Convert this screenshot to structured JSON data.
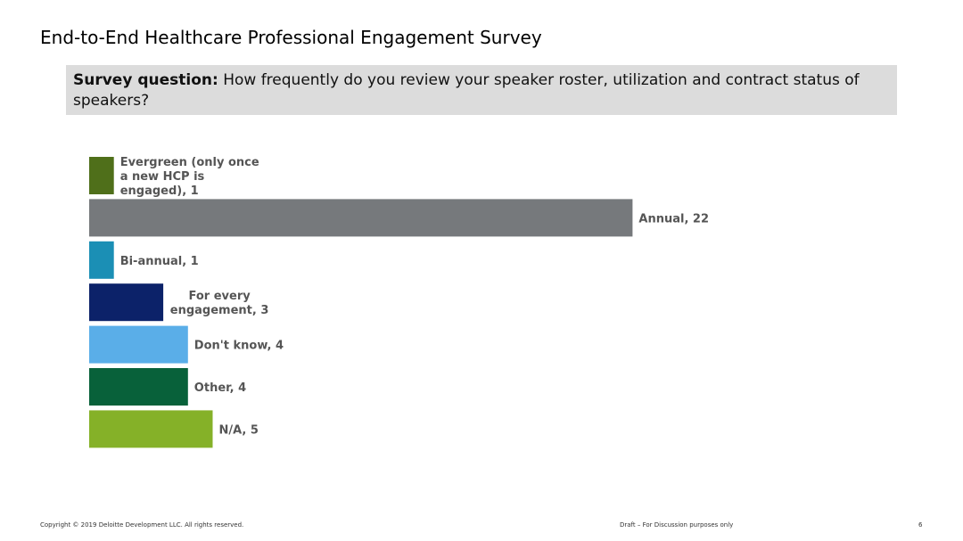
{
  "page": {
    "title": "End-to-End Healthcare Professional Engagement Survey"
  },
  "question": {
    "label": "Survey question:",
    "text": "How frequently do you review your speaker roster, utilization and contract status of speakers?"
  },
  "chart_data": {
    "type": "bar",
    "orientation": "horizontal",
    "grid": false,
    "categories": [
      "Evergreen (only once a new HCP is engaged)",
      "Annual",
      "Bi-annual",
      "For every engagement",
      "Don't know",
      "Other",
      "N/A"
    ],
    "values": [
      1,
      22,
      1,
      3,
      4,
      4,
      5
    ],
    "label_lines": [
      [
        "Evergreen (only once",
        "a new HCP is",
        "engaged), 1"
      ],
      [
        "Annual, 22"
      ],
      [
        "Bi-annual, 1"
      ],
      [
        "For every",
        "engagement, 3"
      ],
      [
        "Don't know, 4"
      ],
      [
        "Other, 4"
      ],
      [
        "N/A, 5"
      ]
    ],
    "colors": [
      "#4f6f1a",
      "#76797c",
      "#1b8fb5",
      "#0c2269",
      "#5aaee8",
      "#08613a",
      "#85b128"
    ],
    "xlim": [
      0,
      22
    ]
  },
  "footer": {
    "copyright": "Copyright © 2019 Deloitte Development LLC. All rights reserved.",
    "draft": "Draft – For Discussion purposes only",
    "page_number": "6"
  }
}
